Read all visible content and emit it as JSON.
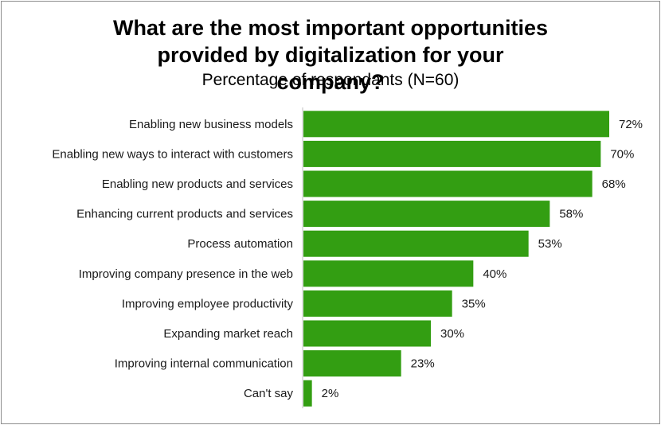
{
  "chart_data": {
    "type": "bar",
    "orientation": "horizontal",
    "title": "What are the most important opportunities provided by digitalization for your company?",
    "subtitle": "Percentage of respondants (N=60)",
    "categories": [
      "Enabling new business models",
      "Enabling new ways to interact with customers",
      "Enabling new products and services",
      "Enhancing current products and services",
      "Process automation",
      "Improving company presence in the web",
      "Improving employee productivity",
      "Expanding market reach",
      "Improving internal communication",
      "Can't say"
    ],
    "values": [
      72,
      70,
      68,
      58,
      53,
      40,
      35,
      30,
      23,
      2
    ],
    "value_labels": [
      "72%",
      "70%",
      "68%",
      "58%",
      "53%",
      "40%",
      "35%",
      "30%",
      "23%",
      "2%"
    ],
    "unit": "%",
    "xlim": [
      0,
      80
    ],
    "grid": false,
    "legend": "none",
    "bar_color": "#339e12"
  }
}
